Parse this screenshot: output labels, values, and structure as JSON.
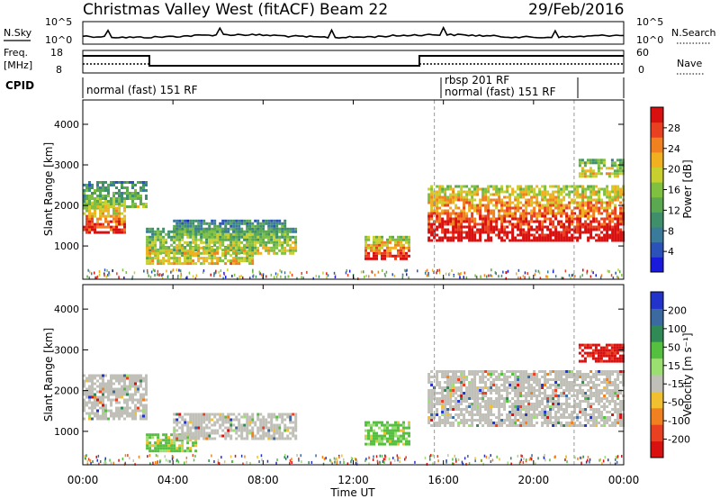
{
  "header": {
    "title": "Christmas Valley West (fitACF)",
    "beam": "Beam 22",
    "date": "29/Feb/2016"
  },
  "top_panels": {
    "nsky_label": "N.Sky",
    "nsky_ticks": [
      "10^5",
      "10^0"
    ],
    "nsearch_label": "N.Search",
    "freq_label": "Freq.",
    "freq_unit": "[MHz]",
    "freq_ticks": [
      "18",
      "8"
    ],
    "nave_ticks": [
      "60",
      "0"
    ],
    "nave_label": "Nave",
    "cpid_label": "CPID",
    "cpid_modes": [
      "normal (fast) 151 RF",
      "rbsp 201 RF",
      "normal (fast) 151 RF"
    ]
  },
  "chart_data": [
    {
      "type": "heatmap",
      "name": "power",
      "ylabel": "Slant Range [km]",
      "xlabel": "Time UT",
      "xlim": [
        "00:00",
        "24:00"
      ],
      "ylim": [
        180,
        4600
      ],
      "x_ticks": [
        "00:00",
        "04:00",
        "08:00",
        "12:00",
        "16:00",
        "20:00",
        "00:00"
      ],
      "y_ticks": [
        "1000",
        "2000",
        "3000",
        "4000"
      ],
      "colorbar": {
        "label": "Power [dB]",
        "ticks": [
          "4",
          "8",
          "12",
          "16",
          "20",
          "24",
          "28"
        ],
        "colors": [
          "#1a1adc",
          "#2a52b8",
          "#3a7a9a",
          "#3f8f6a",
          "#5aa850",
          "#7fc040",
          "#c8d030",
          "#f0b020",
          "#f08020",
          "#e84020",
          "#d81010"
        ]
      },
      "echo_regions": [
        {
          "t0": 0.0,
          "t1": 1.8,
          "r0": 1350,
          "r1": 2100,
          "level": 0.82
        },
        {
          "t0": 0.0,
          "t1": 2.8,
          "r0": 2000,
          "r1": 2600,
          "level": 0.45
        },
        {
          "t0": 2.8,
          "t1": 7.5,
          "r0": 550,
          "r1": 1000,
          "level": 0.6
        },
        {
          "t0": 2.8,
          "t1": 9.5,
          "r0": 800,
          "r1": 1450,
          "level": 0.55
        },
        {
          "t0": 4.0,
          "t1": 9.0,
          "r0": 1250,
          "r1": 1650,
          "level": 0.4
        },
        {
          "t0": 12.5,
          "t1": 14.5,
          "r0": 700,
          "r1": 1250,
          "level": 0.85
        },
        {
          "t0": 15.3,
          "t1": 24.0,
          "r0": 1150,
          "r1": 2500,
          "level": 0.9
        },
        {
          "t0": 22.0,
          "t1": 24.0,
          "r0": 2700,
          "r1": 3150,
          "level": 0.6
        }
      ]
    },
    {
      "type": "heatmap",
      "name": "velocity",
      "ylabel": "Slant Range [km]",
      "xlabel": "Time UT",
      "xlim": [
        "00:00",
        "24:00"
      ],
      "ylim": [
        180,
        4600
      ],
      "x_ticks": [
        "00:00",
        "04:00",
        "08:00",
        "12:00",
        "16:00",
        "20:00",
        "00:00"
      ],
      "y_ticks": [
        "1000",
        "2000",
        "3000",
        "4000"
      ],
      "colorbar": {
        "label": "Velocity [m s⁻¹]",
        "ticks": [
          "200",
          "100",
          "50",
          "15",
          "-15",
          "-50",
          "-100",
          "-200"
        ],
        "colors": [
          "#2233cc",
          "#3a6aa0",
          "#2f8a55",
          "#55c040",
          "#9adf70",
          "#c0c0b8",
          "#f0c030",
          "#f08020",
          "#e84020",
          "#d81010"
        ]
      },
      "echo_regions": [
        {
          "t0": 0.0,
          "t1": 2.8,
          "r0": 1300,
          "r1": 2400,
          "level": "gray"
        },
        {
          "t0": 2.8,
          "t1": 5.0,
          "r0": 550,
          "r1": 950,
          "level": "green"
        },
        {
          "t0": 4.0,
          "t1": 9.5,
          "r0": 800,
          "r1": 1450,
          "level": "gray"
        },
        {
          "t0": 12.5,
          "t1": 14.5,
          "r0": 700,
          "r1": 1250,
          "level": "green"
        },
        {
          "t0": 15.3,
          "t1": 24.0,
          "r0": 1150,
          "r1": 2500,
          "level": "gray"
        },
        {
          "t0": 22.0,
          "t1": 24.0,
          "r0": 2700,
          "r1": 3150,
          "level": "red"
        }
      ]
    }
  ]
}
